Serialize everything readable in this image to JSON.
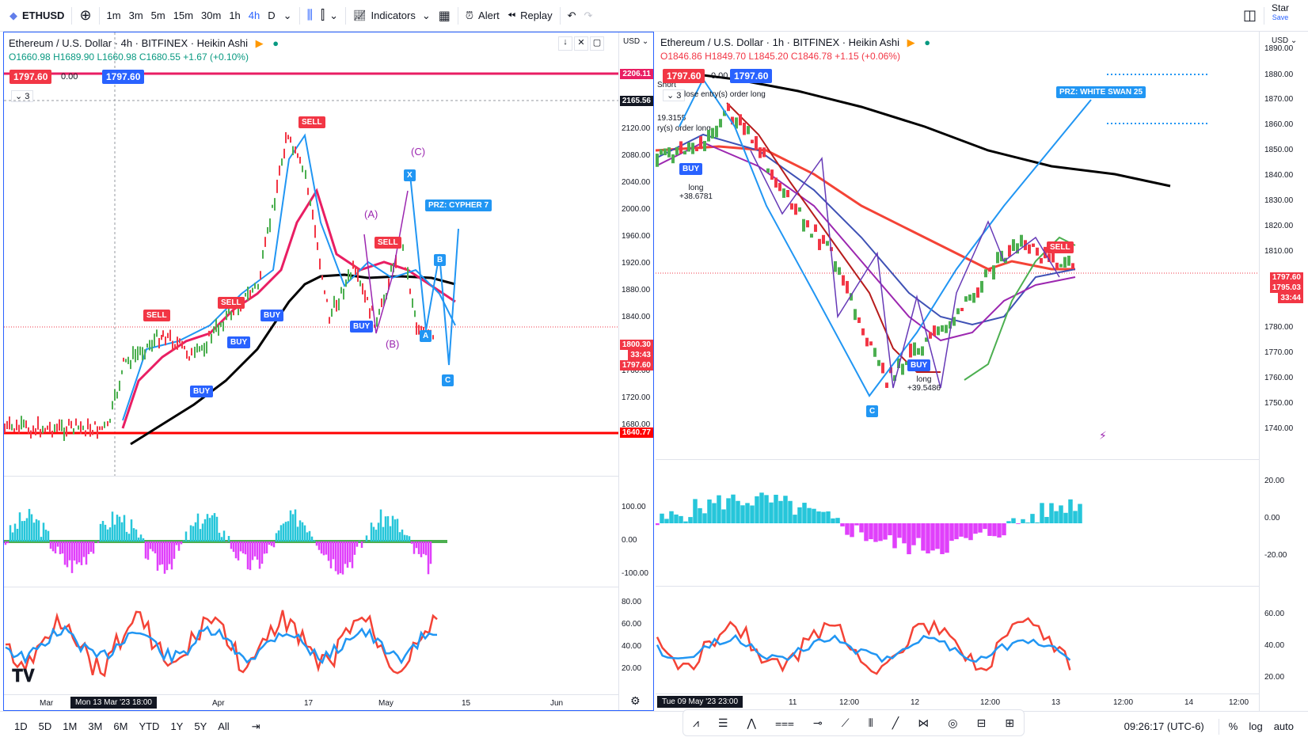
{
  "toolbar": {
    "symbol": "ETHUSD",
    "intervals": [
      "1m",
      "3m",
      "5m",
      "15m",
      "30m",
      "1h",
      "4h",
      "D"
    ],
    "active_interval": "4h",
    "indicators_label": "Indicators",
    "alert_label": "Alert",
    "replay_label": "Replay",
    "star_label": "Star",
    "save_label": "Save"
  },
  "left_chart": {
    "title": "Ethereum / U.S. Dollar · 4h · BITFINEX · Heikin Ashi",
    "ohlc": {
      "o": "O1660.98",
      "h": "H1689.90",
      "l": "L1660.98",
      "c": "C1680.55",
      "chg": "+1.67 (+0.10%)"
    },
    "sell_price": "1797.60",
    "spread": "0.00",
    "buy_price": "1797.60",
    "layer_count": "3",
    "currency": "USD",
    "price_ticks": [
      "2120.00",
      "2080.00",
      "2040.00",
      "2000.00",
      "1960.00",
      "1920.00",
      "1880.00",
      "1840.00",
      "1760.00",
      "1720.00",
      "1680.00"
    ],
    "tag_top": "2206.11",
    "tag_crosshair": "2165.56",
    "tag_last": "1800.30",
    "tag_countdown": "33:43",
    "tag_last2": "1797.60",
    "tag_support": "1640.77",
    "osc_ticks": [
      "100.00",
      "0.00",
      "-100.00"
    ],
    "rsi_ticks": [
      "80.00",
      "60.00",
      "40.00",
      "20.00"
    ],
    "time_labels": [
      "Mar",
      "Apr",
      "17",
      "May",
      "15",
      "Jun"
    ],
    "time_badge": "Mon 13 Mar '23   18:00",
    "prz_label": "PRZ: CYPHER 7",
    "wave_labels": [
      "(A)",
      "(B)",
      "(C)"
    ],
    "pattern_points": [
      "X",
      "A",
      "B",
      "C"
    ],
    "signals": {
      "buy": "BUY",
      "sell": "SELL"
    }
  },
  "right_chart": {
    "title": "Ethereum / U.S. Dollar · 1h · BITFINEX · Heikin Ashi",
    "ohlc": {
      "o": "O1846.86",
      "h": "H1849.70",
      "l": "L1845.20",
      "c": "C1846.78",
      "chg": "+1.15 (+0.06%)"
    },
    "sell_price": "1797.60",
    "spread": "0.00",
    "buy_price": "1797.60",
    "layer_count": "3",
    "currency": "USD",
    "price_ticks": [
      "1890.00",
      "1880.00",
      "1870.00",
      "1860.00",
      "1850.00",
      "1840.00",
      "1830.00",
      "1820.00",
      "1810.00",
      "1780.00",
      "1770.00",
      "1760.00",
      "1750.00",
      "1740.00"
    ],
    "tag_last": "1797.60",
    "tag_last2": "1795.03",
    "tag_countdown": "33:44",
    "osc_ticks": [
      "20.00",
      "0.00",
      "-20.00"
    ],
    "rsi_ticks": [
      "60.00",
      "40.00",
      "20.00"
    ],
    "time_labels": [
      "11",
      "12:00",
      "12",
      "12:00",
      "13",
      "12:00",
      "14",
      "12:00"
    ],
    "time_badge": "Tue 09 May '23   23:00",
    "prz_label": "PRZ: WHITE SWAN 25",
    "pattern_points": [
      "C"
    ],
    "annotations": {
      "close_order": "lose entry(s) order long",
      "long1": "long",
      "long1_value": "+38.6781",
      "long2": "long",
      "long2_value": "+39.5486",
      "partial_value": "19.3155",
      "partial_order": "ry(s) order long",
      "short_label": "Short"
    }
  },
  "bottom_bar": {
    "ranges": [
      "1D",
      "5D",
      "1M",
      "3M",
      "6M",
      "YTD",
      "1Y",
      "5Y",
      "All"
    ],
    "clock": "09:26:17 (UTC-6)",
    "percent": "%",
    "log": "log",
    "auto": "auto"
  },
  "colors": {
    "accent": "#2962ff",
    "up": "#089981",
    "down": "#f23645",
    "support_line": "#ff0000",
    "resistance_line": "#e91e63"
  }
}
